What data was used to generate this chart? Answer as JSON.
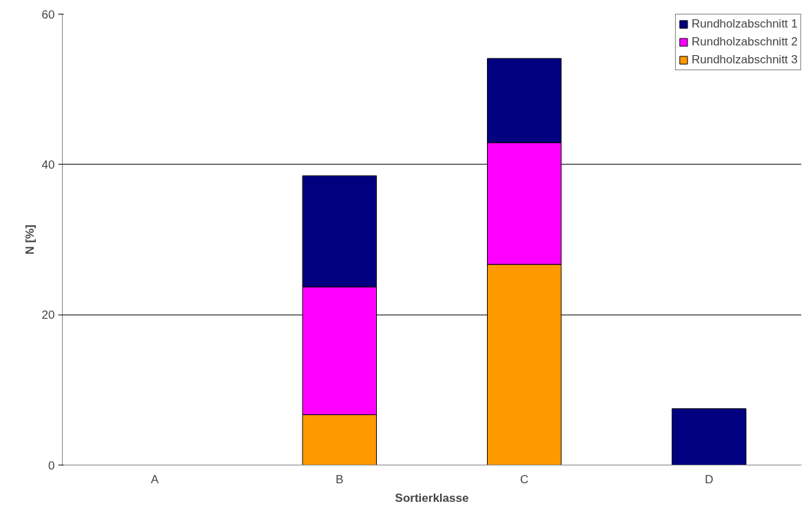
{
  "chart_data": {
    "type": "bar",
    "stacked": true,
    "xlabel": "Sortierklasse",
    "ylabel": "N [%]",
    "categories": [
      "A",
      "B",
      "C",
      "D"
    ],
    "series": [
      {
        "name": "Rundholzabschnitt 3",
        "color": "#ff9900",
        "values": [
          0,
          6.7,
          26.7,
          0
        ]
      },
      {
        "name": "Rundholzabschnitt 2",
        "color": "#ff00ff",
        "values": [
          0,
          17.0,
          16.2,
          0
        ]
      },
      {
        "name": "Rundholzabschnitt 1",
        "color": "#000080",
        "values": [
          0,
          14.8,
          11.2,
          7.5
        ]
      }
    ],
    "ylim": [
      0,
      60
    ],
    "yticks": [
      0,
      20,
      40,
      60
    ],
    "grid": "y",
    "legend": "top right"
  }
}
